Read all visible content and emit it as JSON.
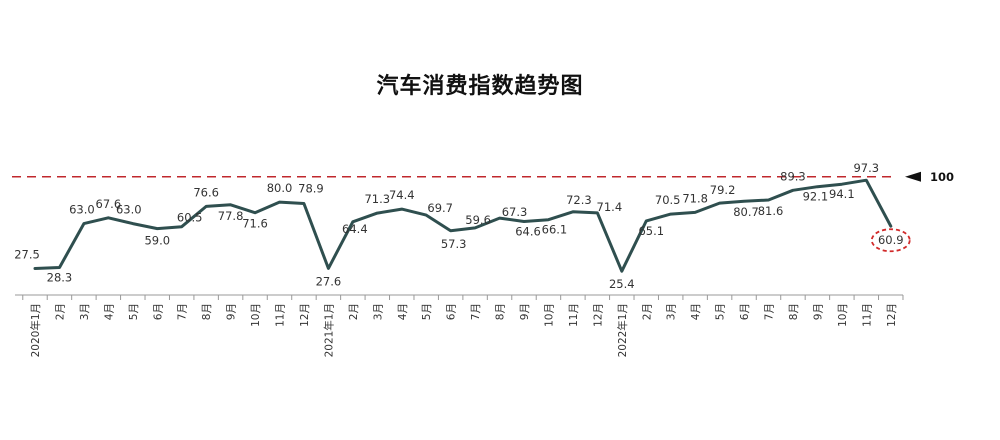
{
  "title": "汽车消费指数趋势图",
  "chart_data": {
    "type": "line",
    "title": "汽车消费指数趋势图",
    "categories": [
      "2020年1月",
      "2月",
      "3月",
      "4月",
      "5月",
      "6月",
      "7月",
      "8月",
      "9月",
      "10月",
      "11月",
      "12月",
      "2021年1月",
      "2月",
      "3月",
      "4月",
      "5月",
      "6月",
      "7月",
      "8月",
      "9月",
      "10月",
      "11月",
      "12月",
      "2022年1月",
      "2月",
      "3月",
      "4月",
      "5月",
      "6月",
      "7月",
      "8月",
      "9月",
      "10月",
      "11月",
      "12月"
    ],
    "series": [
      {
        "values": [
          27.5,
          28.3,
          63.0,
          67.6,
          63.0,
          59.0,
          60.5,
          76.6,
          77.8,
          71.6,
          80.0,
          78.9,
          27.6,
          64.4,
          71.3,
          74.4,
          69.7,
          57.3,
          59.6,
          67.3,
          64.6,
          66.1,
          72.3,
          71.4,
          25.4,
          65.1,
          70.5,
          71.8,
          79.2,
          80.7,
          81.6,
          89.3,
          92.1,
          94.1,
          97.3,
          60.9
        ]
      }
    ],
    "reference_line": {
      "value": 100,
      "label": "100",
      "style": "dashed",
      "color": "#c0282d"
    },
    "highlight": {
      "index": 35,
      "style": "dashed-circle",
      "color": "#d12a2a"
    },
    "line_color": "#2f4f4f",
    "axis_color": "#999999",
    "grid": false,
    "legend": "none",
    "xlabel": "",
    "ylabel": ""
  }
}
